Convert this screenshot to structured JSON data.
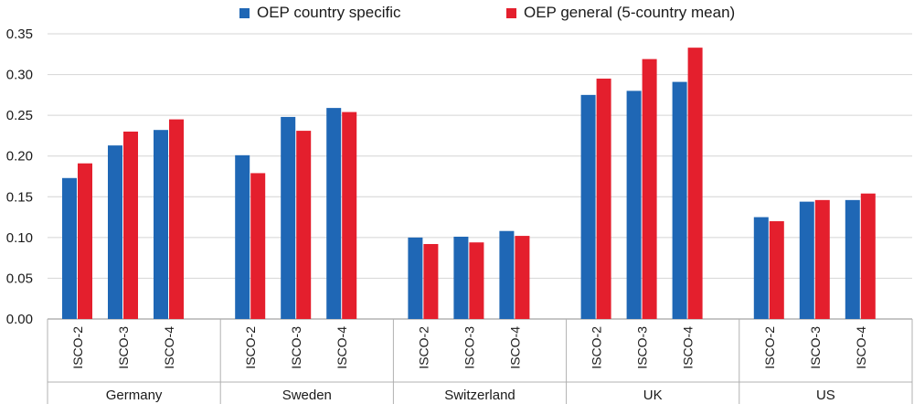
{
  "chart_data": {
    "type": "bar",
    "title": "",
    "xlabel": "",
    "ylabel": "",
    "ylim": [
      0,
      0.35
    ],
    "yticks": [
      "0.00",
      "0.05",
      "0.10",
      "0.15",
      "0.20",
      "0.25",
      "0.30",
      "0.35"
    ],
    "grid": "horizontal",
    "legend_position": "top",
    "groups": [
      {
        "name": "Germany",
        "categories": [
          "ISCO-2",
          "ISCO-3",
          "ISCO-4"
        ]
      },
      {
        "name": "Sweden",
        "categories": [
          "ISCO-2",
          "ISCO-3",
          "ISCO-4"
        ]
      },
      {
        "name": "Switzerland",
        "categories": [
          "ISCO-2",
          "ISCO-3",
          "ISCO-4"
        ]
      },
      {
        "name": "UK",
        "categories": [
          "ISCO-2",
          "ISCO-3",
          "ISCO-4"
        ]
      },
      {
        "name": "US",
        "categories": [
          "ISCO-2",
          "ISCO-3",
          "ISCO-4"
        ]
      }
    ],
    "series": [
      {
        "name": "OEP country specific",
        "color": "#1f67b5",
        "values": [
          0.173,
          0.213,
          0.232,
          0.201,
          0.248,
          0.259,
          0.1,
          0.101,
          0.108,
          0.275,
          0.28,
          0.291,
          0.125,
          0.144,
          0.146
        ]
      },
      {
        "name": "OEP general (5-country mean)",
        "color": "#e41f2d",
        "values": [
          0.191,
          0.23,
          0.245,
          0.179,
          0.231,
          0.254,
          0.092,
          0.094,
          0.102,
          0.295,
          0.319,
          0.333,
          0.12,
          0.146,
          0.154
        ]
      }
    ]
  }
}
